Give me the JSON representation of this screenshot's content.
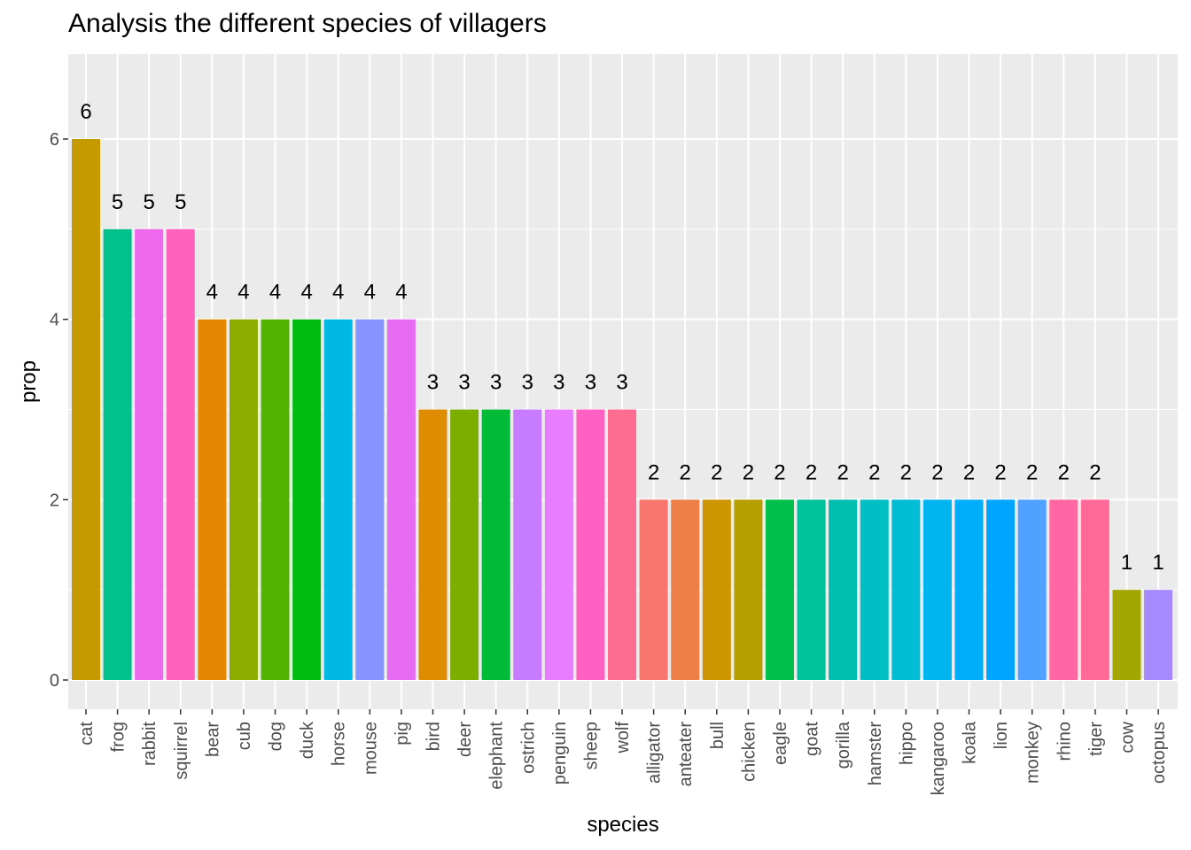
{
  "chart_data": {
    "type": "bar",
    "title": "Analysis the different species of villagers",
    "xlabel": "species",
    "ylabel": "prop",
    "ylim": [
      0,
      6.8
    ],
    "yticks": [
      0,
      2,
      4,
      6
    ],
    "grid": true,
    "legend": "none",
    "background": "#ebebeb",
    "gridline_color": "#ffffff",
    "categories": [
      "cat",
      "frog",
      "rabbit",
      "squirrel",
      "bear",
      "cub",
      "dog",
      "duck",
      "horse",
      "mouse",
      "pig",
      "bird",
      "deer",
      "elephant",
      "ostrich",
      "penguin",
      "sheep",
      "wolf",
      "alligator",
      "anteater",
      "bull",
      "chicken",
      "eagle",
      "goat",
      "gorilla",
      "hamster",
      "hippo",
      "kangaroo",
      "koala",
      "lion",
      "monkey",
      "rhino",
      "tiger",
      "cow",
      "octopus"
    ],
    "values": [
      6,
      5,
      5,
      5,
      4,
      4,
      4,
      4,
      4,
      4,
      4,
      3,
      3,
      3,
      3,
      3,
      3,
      3,
      2,
      2,
      2,
      2,
      2,
      2,
      2,
      2,
      2,
      2,
      2,
      2,
      2,
      2,
      2,
      1,
      1
    ],
    "data_labels": [
      "6",
      "5",
      "5",
      "5",
      "4",
      "4",
      "4",
      "4",
      "4",
      "4",
      "4",
      "3",
      "3",
      "3",
      "3",
      "3",
      "3",
      "3",
      "2",
      "2",
      "2",
      "2",
      "2",
      "2",
      "2",
      "2",
      "2",
      "2",
      "2",
      "2",
      "2",
      "2",
      "2",
      "1",
      "1"
    ],
    "colors": [
      "#C49A00",
      "#00C08B",
      "#ED68ED",
      "#FF62BC",
      "#E58700",
      "#8EAB00",
      "#53B400",
      "#00BC0E",
      "#00B9E3",
      "#8794FF",
      "#E76BF3",
      "#DE8C00",
      "#7CAE00",
      "#00BA38",
      "#C77CFF",
      "#E87EFF",
      "#FF61C3",
      "#FF6C91",
      "#F8766D",
      "#EF7F49",
      "#CD9600",
      "#B79F00",
      "#00C04B",
      "#00C19A",
      "#00BFAE",
      "#00BFC4",
      "#00BDD5",
      "#00B4EF",
      "#00ADFA",
      "#00A5FF",
      "#4FA2FF",
      "#FF67A4",
      "#FF6A98",
      "#A3A500",
      "#A58AFF"
    ]
  }
}
